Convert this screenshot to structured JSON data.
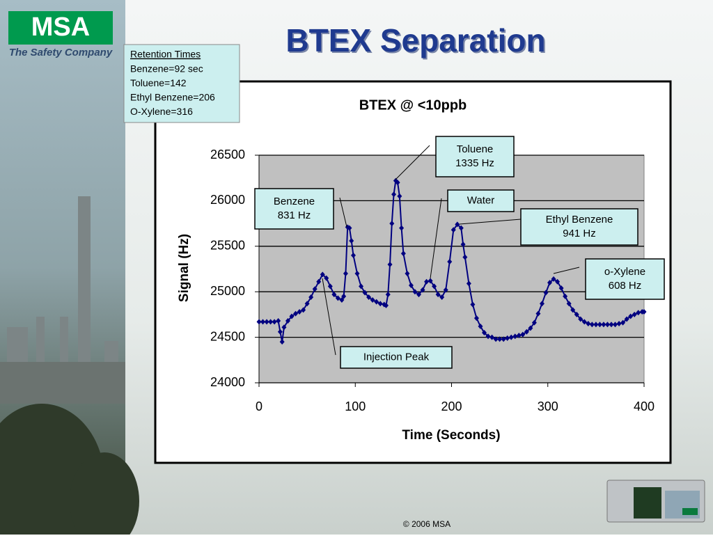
{
  "logo": {
    "brand": "MSA",
    "tagline": "The Safety Company"
  },
  "slide_title": "BTEX Separation",
  "retention": {
    "title": "Retention Times",
    "lines": [
      "Benzene=92 sec",
      "Toluene=142",
      "Ethyl Benzene=206",
      "O-Xylene=316"
    ]
  },
  "footer": "© 2006 MSA",
  "chart_data": {
    "type": "line",
    "title": "BTEX @ <10ppb",
    "x_label": "Time (Seconds)",
    "y_label": "Signal (Hz)",
    "color": "#000080",
    "grid": true,
    "xlim": [
      0,
      400
    ],
    "xticks": [
      0,
      100,
      200,
      300,
      400
    ],
    "ylim": [
      24000,
      26500
    ],
    "yticks": [
      24000,
      24500,
      25000,
      25500,
      26000,
      26500
    ],
    "x": [
      0,
      4,
      8,
      12,
      16,
      20,
      22,
      24,
      26,
      30,
      34,
      38,
      42,
      46,
      50,
      54,
      58,
      62,
      66,
      70,
      74,
      78,
      82,
      86,
      88,
      90,
      92,
      94,
      96,
      98,
      102,
      106,
      110,
      114,
      118,
      122,
      126,
      130,
      132,
      134,
      136,
      138,
      140,
      142,
      144,
      146,
      148,
      150,
      154,
      158,
      162,
      166,
      170,
      174,
      178,
      182,
      186,
      190,
      194,
      198,
      202,
      206,
      210,
      212,
      214,
      218,
      222,
      226,
      230,
      234,
      238,
      242,
      246,
      250,
      254,
      258,
      262,
      266,
      270,
      274,
      278,
      282,
      286,
      290,
      294,
      298,
      302,
      306,
      310,
      314,
      318,
      322,
      326,
      330,
      334,
      338,
      342,
      346,
      350,
      354,
      358,
      362,
      366,
      370,
      374,
      378,
      382,
      386,
      390,
      394,
      398,
      400
    ],
    "values": [
      24670,
      24670,
      24670,
      24670,
      24670,
      24680,
      24560,
      24450,
      24610,
      24680,
      24730,
      24760,
      24780,
      24800,
      24870,
      24940,
      25030,
      25110,
      25190,
      25150,
      25060,
      24970,
      24930,
      24910,
      24950,
      25200,
      25710,
      25700,
      25560,
      25400,
      25200,
      25060,
      24990,
      24940,
      24910,
      24890,
      24870,
      24860,
      24850,
      24970,
      25300,
      25750,
      26070,
      26220,
      26200,
      26050,
      25700,
      25420,
      25200,
      25070,
      25000,
      24970,
      25020,
      25110,
      25120,
      25060,
      24970,
      24940,
      25020,
      25330,
      25680,
      25740,
      25700,
      25520,
      25380,
      25090,
      24860,
      24710,
      24620,
      24550,
      24510,
      24500,
      24480,
      24480,
      24480,
      24490,
      24500,
      24510,
      24520,
      24530,
      24560,
      24600,
      24660,
      24760,
      24870,
      24990,
      25100,
      25140,
      25110,
      25040,
      24950,
      24870,
      24800,
      24750,
      24700,
      24670,
      24650,
      24640,
      24640,
      24640,
      24640,
      24640,
      24640,
      24640,
      24650,
      24660,
      24700,
      24730,
      24750,
      24770,
      24780,
      24780
    ],
    "annotations": [
      {
        "lines": [
          "Toluene",
          "1335 Hz"
        ]
      },
      {
        "lines": [
          "Benzene",
          "831 Hz"
        ]
      },
      {
        "lines": [
          "Water"
        ]
      },
      {
        "lines": [
          "Ethyl Benzene",
          "941 Hz"
        ]
      },
      {
        "lines": [
          "o-Xylene",
          "608 Hz"
        ]
      },
      {
        "lines": [
          "Injection Peak"
        ]
      }
    ]
  }
}
